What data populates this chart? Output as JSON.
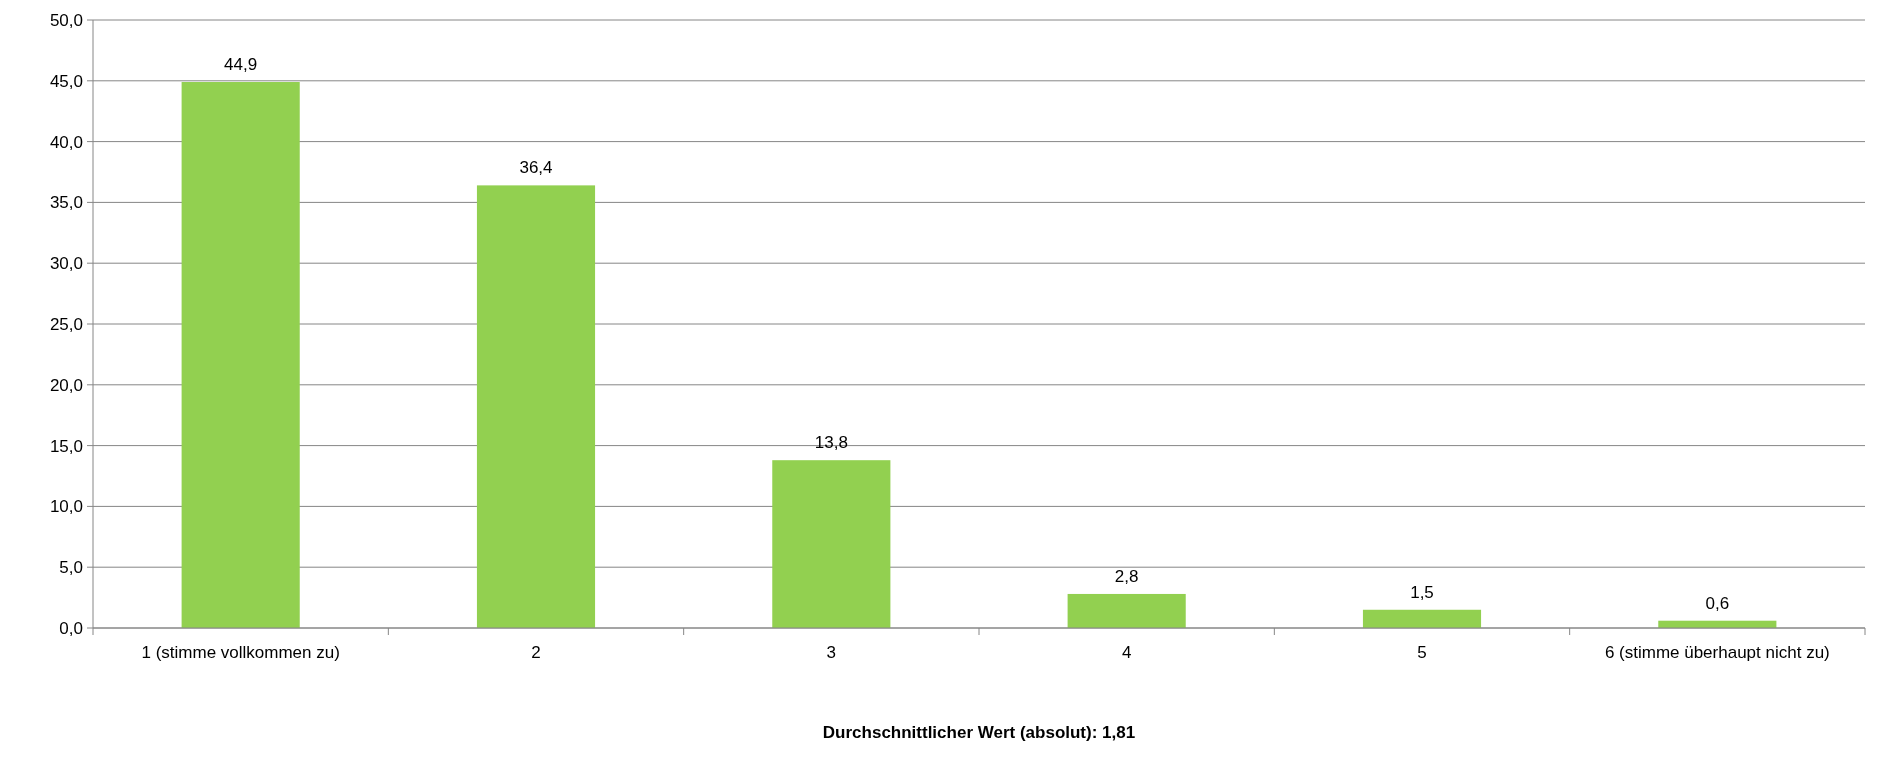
{
  "chart_data": {
    "type": "bar",
    "xlabel": "Durchschnittlicher Wert (absolut): 1,81",
    "categories": [
      "1 (stimme vollkommen zu)",
      "2",
      "3",
      "4",
      "5",
      "6 (stimme überhaupt nicht zu)"
    ],
    "values": [
      44.9,
      36.4,
      13.8,
      2.8,
      1.5,
      0.6
    ],
    "value_labels": [
      "44,9",
      "36,4",
      "13,8",
      "2,8",
      "1,5",
      "0,6"
    ],
    "color": "#92d050",
    "ylim": [
      0,
      50
    ],
    "yticks": [
      {
        "value": 0,
        "label": "0,0"
      },
      {
        "value": 5,
        "label": "5,0"
      },
      {
        "value": 10,
        "label": "10,0"
      },
      {
        "value": 15,
        "label": "15,0"
      },
      {
        "value": 20,
        "label": "20,0"
      },
      {
        "value": 25,
        "label": "25,0"
      },
      {
        "value": 30,
        "label": "30,0"
      },
      {
        "value": 35,
        "label": "35,0"
      },
      {
        "value": 40,
        "label": "40,0"
      },
      {
        "value": 45,
        "label": "45,0"
      },
      {
        "value": 50,
        "label": "50,0"
      }
    ],
    "grid": "y"
  }
}
